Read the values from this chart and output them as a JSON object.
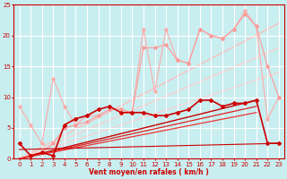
{
  "background_color": "#c8eef0",
  "grid_color": "#ffffff",
  "xlabel": "Vent moyen/en rafales ( km/h )",
  "xlim": [
    -0.5,
    23.5
  ],
  "ylim": [
    0,
    25
  ],
  "xticks": [
    0,
    1,
    2,
    3,
    4,
    5,
    6,
    7,
    8,
    9,
    10,
    11,
    12,
    13,
    14,
    15,
    16,
    17,
    18,
    19,
    20,
    21,
    22,
    23
  ],
  "yticks": [
    0,
    5,
    10,
    15,
    20,
    25
  ],
  "series": [
    {
      "x": [
        0,
        1,
        2,
        3,
        4,
        5,
        6,
        7,
        8,
        9,
        10,
        11,
        12,
        13,
        14,
        15,
        16,
        17,
        18,
        19,
        20,
        21,
        22,
        23
      ],
      "y": [
        8.5,
        5.5,
        2.5,
        13,
        8.5,
        5.5,
        7,
        7,
        8,
        8,
        7.5,
        21,
        11,
        21,
        16,
        15.5,
        21,
        20,
        19.5,
        21,
        24,
        21.5,
        6.5,
        10
      ],
      "color": "#ffaaaa",
      "lw": 0.8,
      "marker": "D",
      "ms": 1.8,
      "zorder": 2
    },
    {
      "x": [
        0,
        1,
        2,
        3,
        4,
        5,
        6,
        7,
        8,
        9,
        10,
        11,
        12,
        13,
        14,
        15,
        16,
        17,
        18,
        19,
        20,
        21,
        22,
        23
      ],
      "y": [
        2.5,
        0.5,
        1.0,
        2.5,
        5,
        5.5,
        6,
        7,
        8,
        8,
        7.5,
        18,
        18,
        18.5,
        16,
        15.5,
        21,
        20,
        19.5,
        21,
        23.5,
        21.5,
        15,
        10
      ],
      "color": "#ff9999",
      "lw": 0.8,
      "marker": "D",
      "ms": 1.8,
      "zorder": 2
    },
    {
      "x": [
        0,
        23
      ],
      "y": [
        0,
        22
      ],
      "color": "#ffbbbb",
      "lw": 0.9,
      "marker": null,
      "ms": 0,
      "zorder": 1
    },
    {
      "x": [
        0,
        23
      ],
      "y": [
        0,
        18
      ],
      "color": "#ffcccc",
      "lw": 0.9,
      "marker": null,
      "ms": 0,
      "zorder": 1
    },
    {
      "x": [
        0,
        23
      ],
      "y": [
        0,
        14
      ],
      "color": "#ffcccc",
      "lw": 0.8,
      "marker": null,
      "ms": 0,
      "zorder": 1
    },
    {
      "x": [
        0,
        1,
        2,
        3,
        4,
        5,
        6,
        7,
        8,
        9,
        10,
        11,
        12,
        13,
        14,
        15,
        16,
        17,
        18,
        19,
        20,
        21,
        22,
        23
      ],
      "y": [
        2.5,
        0.5,
        1.0,
        0.5,
        5.5,
        6.5,
        7,
        8,
        8.5,
        7.5,
        7.5,
        7.5,
        7,
        7,
        7.5,
        8,
        9.5,
        9.5,
        8.5,
        9,
        9,
        9.5,
        2.5,
        2.5
      ],
      "color": "#cc0000",
      "lw": 1.2,
      "marker": "D",
      "ms": 2.0,
      "zorder": 4
    },
    {
      "x": [
        0,
        21
      ],
      "y": [
        0,
        9.5
      ],
      "color": "#cc0000",
      "lw": 1.0,
      "marker": null,
      "ms": 0,
      "zorder": 3
    },
    {
      "x": [
        0,
        21
      ],
      "y": [
        0,
        8.5
      ],
      "color": "#dd2222",
      "lw": 0.9,
      "marker": null,
      "ms": 0,
      "zorder": 3
    },
    {
      "x": [
        0,
        21
      ],
      "y": [
        0,
        7.5
      ],
      "color": "#ee3333",
      "lw": 0.9,
      "marker": null,
      "ms": 0,
      "zorder": 3
    },
    {
      "x": [
        0,
        23
      ],
      "y": [
        1.5,
        2.5
      ],
      "color": "#cc0000",
      "lw": 0.8,
      "marker": null,
      "ms": 0,
      "zorder": 3
    }
  ]
}
